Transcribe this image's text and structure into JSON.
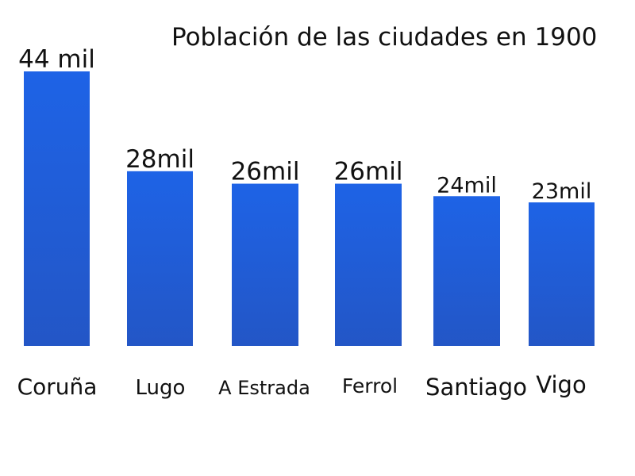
{
  "title": "Población de las ciudades en 1900",
  "chart_data": {
    "type": "bar",
    "title": "Población de las ciudades en 1900",
    "xlabel": "",
    "ylabel": "",
    "unit": "mil",
    "categories": [
      "Coruña",
      "Lugo",
      "A Estrada",
      "Ferrol",
      "Santiago",
      "Vigo"
    ],
    "values": [
      44,
      28,
      26,
      26,
      24,
      23
    ],
    "data_labels": [
      "44 mil",
      "28mil",
      "26mil",
      "26mil",
      "24mil",
      "23mil"
    ],
    "ylim": [
      0,
      44
    ],
    "grid": false,
    "legend": "none",
    "bar_color_top": "#1e63e6",
    "bar_color_bottom": "#2356c6"
  }
}
